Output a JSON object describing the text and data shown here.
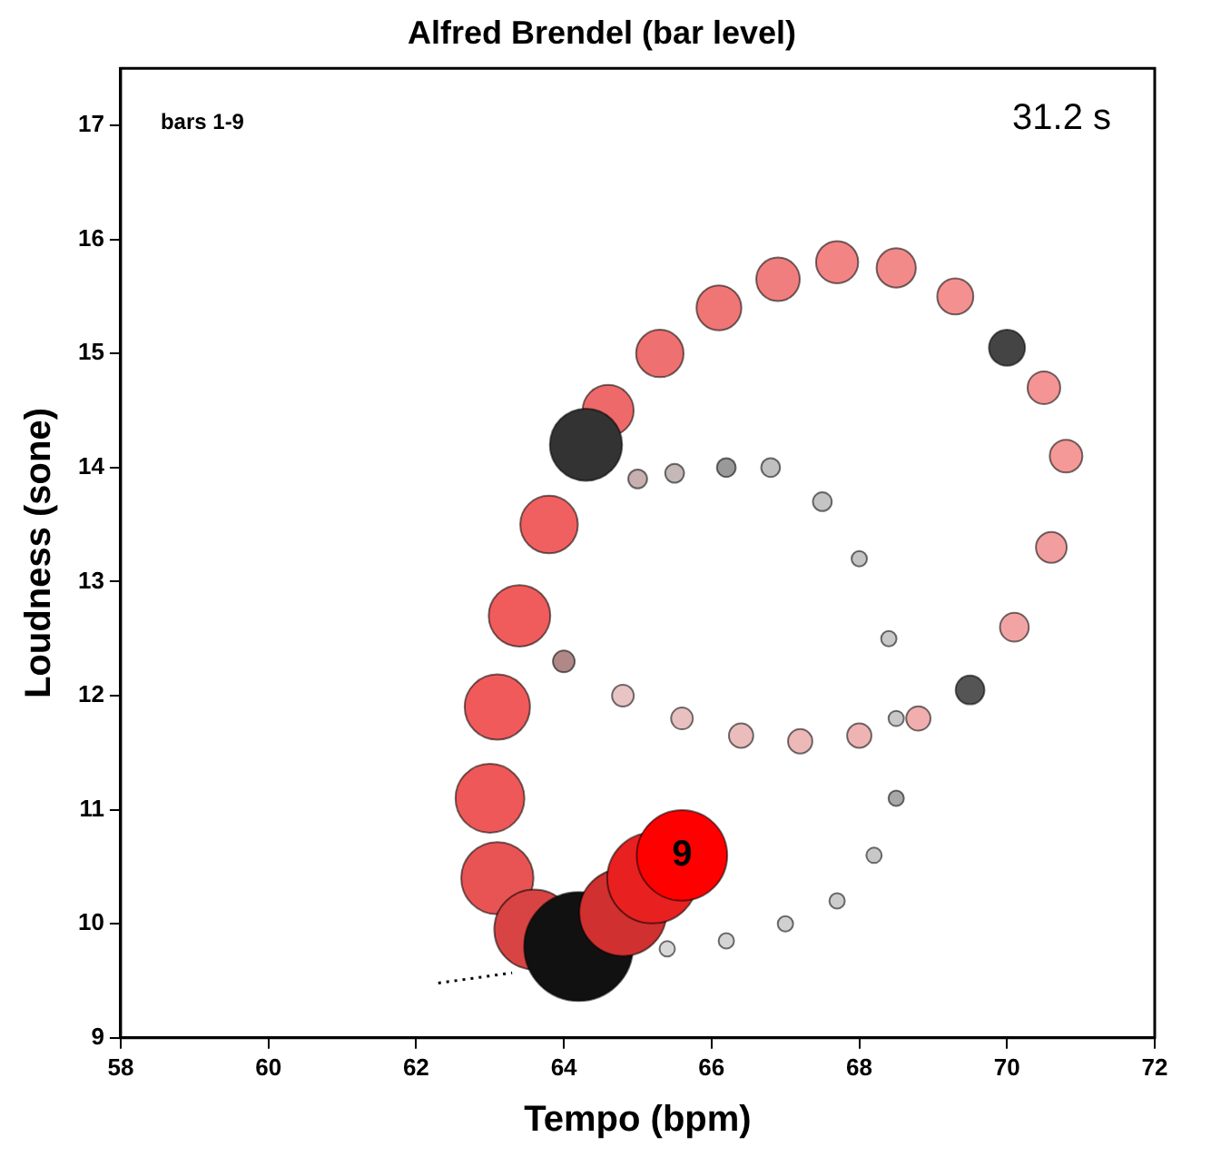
{
  "chart_data": {
    "type": "bubble",
    "title": "Alfred Brendel (bar level)",
    "xlabel": "Tempo (bpm)",
    "ylabel": "Loudness (sone)",
    "xlim": [
      58,
      72
    ],
    "xticks": [
      58,
      60,
      62,
      64,
      66,
      68,
      70,
      72
    ],
    "ylim": [
      9,
      17.5
    ],
    "yticks": [
      9,
      10,
      11,
      12,
      13,
      14,
      15,
      16,
      17
    ],
    "grid": false,
    "legend": false,
    "annotations": [
      "bars 1-9",
      "31.2 s",
      {
        "text": "9",
        "x": 65.6,
        "y": 10.6
      }
    ],
    "series": [
      {
        "type": "line",
        "color": "#000000",
        "line_style": "dotted",
        "marker": "none",
        "x": [
          62.3,
          63.3
        ],
        "values": [
          9.48,
          9.57
        ]
      },
      {
        "x": [
          65.4,
          66.2,
          67.0,
          67.7,
          68.2,
          68.5,
          68.5,
          68.4,
          68.0,
          67.5,
          66.8,
          66.2,
          65.5,
          65.0,
          64.0,
          64.8,
          65.6,
          66.4,
          67.2,
          68.0,
          68.8,
          69.5,
          70.1,
          70.6,
          70.8,
          70.5,
          70.0,
          69.3,
          68.5,
          67.7,
          66.9,
          66.1,
          65.3,
          64.6,
          64.3,
          63.8,
          63.4,
          63.1,
          63.0,
          63.1,
          63.6,
          64.2,
          64.8,
          65.2,
          65.6
        ],
        "values": [
          9.78,
          9.85,
          10.0,
          10.2,
          10.6,
          11.1,
          11.8,
          12.5,
          13.2,
          13.7,
          14.0,
          14.0,
          13.95,
          13.9,
          12.3,
          12.0,
          11.8,
          11.65,
          11.6,
          11.65,
          11.8,
          12.05,
          12.6,
          13.3,
          14.1,
          14.7,
          15.05,
          15.5,
          15.75,
          15.8,
          15.65,
          15.4,
          15.0,
          14.5,
          14.2,
          13.5,
          12.7,
          11.9,
          11.1,
          10.4,
          9.95,
          9.8,
          10.1,
          10.4,
          10.6
        ],
        "sizes": [
          0.02,
          0.02,
          0.02,
          0.02,
          0.02,
          0.02,
          0.02,
          0.02,
          0.02,
          0.03,
          0.03,
          0.03,
          0.03,
          0.03,
          0.04,
          0.04,
          0.04,
          0.05,
          0.05,
          0.05,
          0.05,
          0.07,
          0.07,
          0.08,
          0.09,
          0.09,
          0.11,
          0.11,
          0.13,
          0.15,
          0.16,
          0.17,
          0.19,
          0.22,
          0.44,
          0.28,
          0.32,
          0.36,
          0.4,
          0.44,
          0.54,
          1,
          0.64,
          0.69,
          0.69
        ],
        "colors": [
          "#d8d8d8",
          "#d4d4d4",
          "#d0d0d0",
          "#cccccc",
          "#c8c8c8",
          "#a8a8a8",
          "#c8c8c8",
          "#c8c8c8",
          "#c4c4c4",
          "#c4c4c4",
          "#c0c0c0",
          "#999999",
          "#c4b8b8",
          "#c8b0b0",
          "#b08888",
          "#e8c4c4",
          "#e8c0c0",
          "#eabcbc",
          "#ecb8b8",
          "#eeb4b4",
          "#f0aeae",
          "#555555",
          "#f2a4a4",
          "#f29e9e",
          "#f49898",
          "#f49494",
          "#444444",
          "#f49090",
          "#f28a8a",
          "#f28484",
          "#f07e7e",
          "#f07676",
          "#ee7070",
          "#ee6a6a",
          "#333333",
          "#f06060",
          "#f05c5c",
          "#f05a5a",
          "#ee5858",
          "#e85454",
          "#d84444",
          "#111111",
          "#d03030",
          "#e82020",
          "#ff0000"
        ]
      }
    ]
  }
}
